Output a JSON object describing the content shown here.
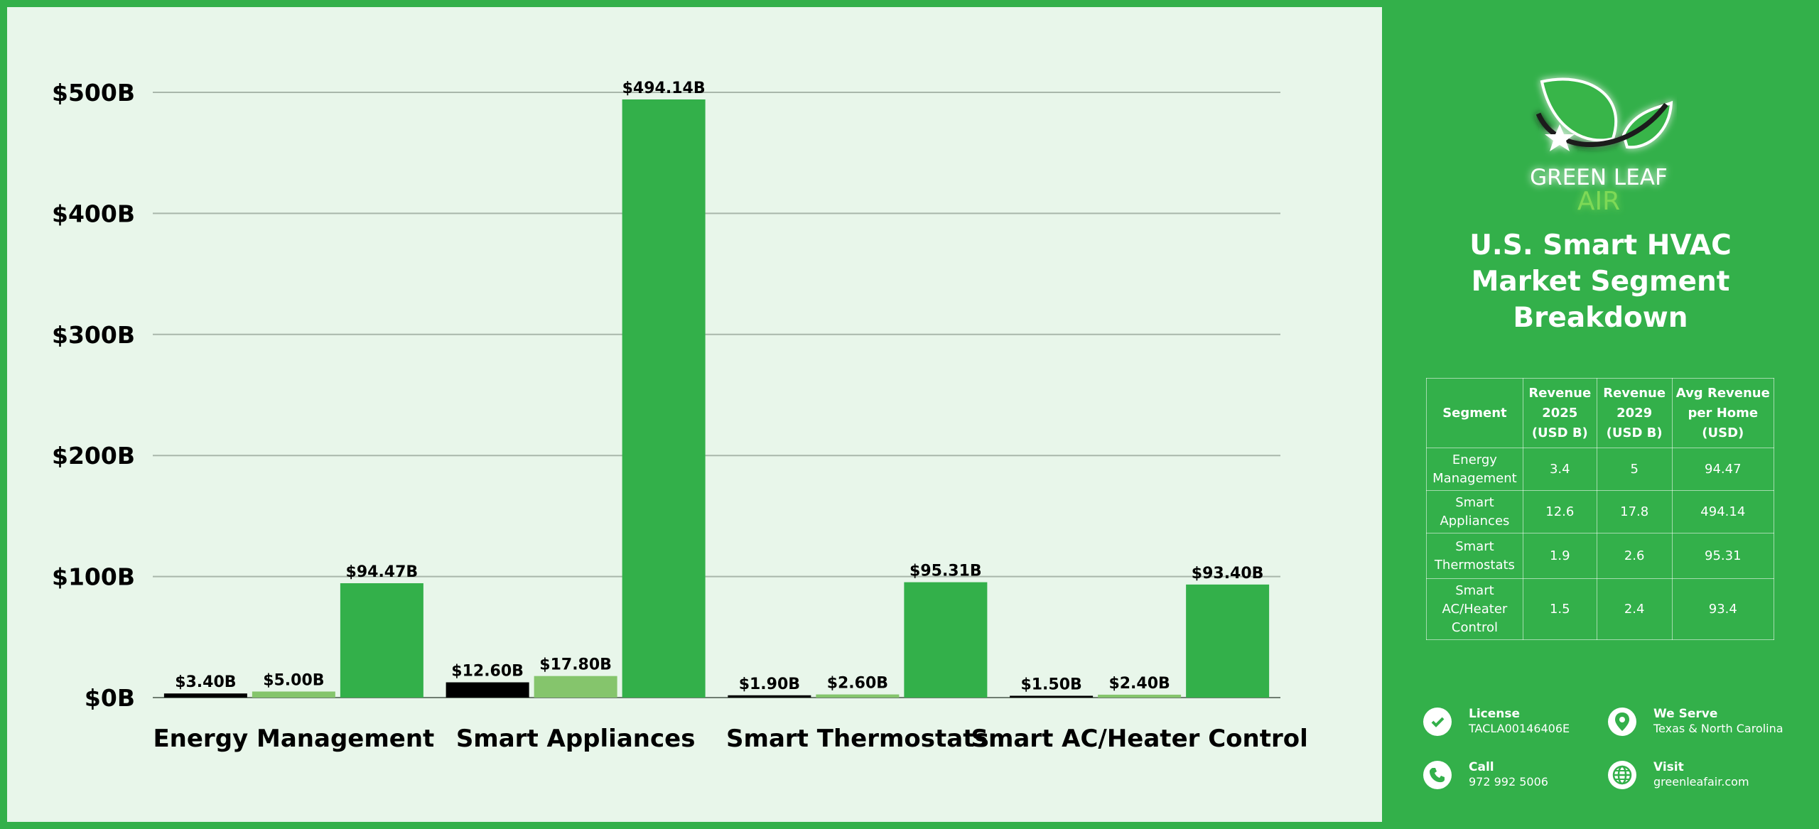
{
  "brand": {
    "name_line1": "GREEN LEAF",
    "name_line2": "AIR"
  },
  "title": "U.S. Smart HVAC Market Segment Breakdown",
  "chart_data": {
    "type": "bar",
    "categories": [
      "Energy Management",
      "Smart Appliances",
      "Smart Thermostats",
      "Smart AC/Heater Control"
    ],
    "series": [
      {
        "values": [
          3.4,
          12.6,
          1.9,
          1.5
        ],
        "labels": [
          "$3.40B",
          "$12.60B",
          "$1.90B",
          "$1.50B"
        ],
        "color": "#000000"
      },
      {
        "values": [
          5.0,
          17.8,
          2.6,
          2.4
        ],
        "labels": [
          "$5.00B",
          "$17.80B",
          "$2.60B",
          "$2.40B"
        ],
        "color": "#85c56c"
      },
      {
        "values": [
          94.47,
          494.14,
          95.31,
          93.4
        ],
        "labels": [
          "$94.47B",
          "$494.14B",
          "$95.31B",
          "$93.40B"
        ],
        "color": "#33b04a"
      }
    ],
    "yticks": [
      0,
      100,
      200,
      300,
      400,
      500
    ],
    "ytick_labels": [
      "$0B",
      "$100B",
      "$200B",
      "$300B",
      "$400B",
      "$500B"
    ],
    "ylim": [
      0,
      500
    ],
    "grid": true,
    "legend": "none"
  },
  "table": {
    "headers": [
      "Segment",
      "Revenue 2025 (USD B)",
      "Revenue 2029 (USD B)",
      "Avg Revenue per Home (USD)"
    ],
    "rows": [
      [
        "Energy Management",
        "3.4",
        "5",
        "94.47"
      ],
      [
        "Smart Appliances",
        "12.6",
        "17.8",
        "494.14"
      ],
      [
        "Smart Thermostats",
        "1.9",
        "2.6",
        "95.31"
      ],
      [
        "Smart AC/Heater Control",
        "1.5",
        "2.4",
        "93.4"
      ]
    ]
  },
  "contact": {
    "license_label": "License",
    "license_value": "TACLA00146406E",
    "serve_label": "We Serve",
    "serve_value": "Texas & North Carolina",
    "call_label": "Call",
    "call_value": "972 992 5006",
    "visit_label": "Visit",
    "visit_value": "greenleafair.com"
  },
  "colors": {
    "accent": "#33b04a",
    "light_green": "#85c56c",
    "panel_bg": "#e8f6ea"
  },
  "icons": [
    "leaf-logo-icon",
    "badge-check-icon",
    "map-pin-icon",
    "phone-icon",
    "globe-icon"
  ]
}
